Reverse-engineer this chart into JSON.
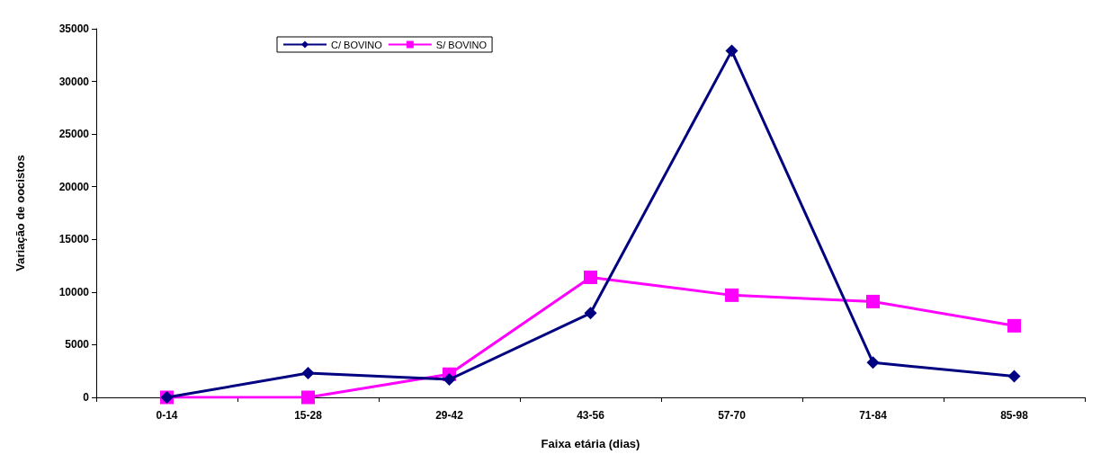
{
  "chart_data": {
    "type": "line",
    "xlabel": "Faixa etária (dias)",
    "ylabel": "Variação de oocistos",
    "categories": [
      "0-14",
      "15-28",
      "29-42",
      "43-56",
      "57-70",
      "71-84",
      "85-98"
    ],
    "series": [
      {
        "name": "C/ BOVINO",
        "color": "#000080",
        "marker": "diamond",
        "values": [
          0,
          2300,
          1700,
          8000,
          32900,
          3300,
          2000
        ]
      },
      {
        "name": "S/ BOVINO",
        "color": "#ff00ff",
        "marker": "square",
        "values": [
          0,
          0,
          2200,
          11400,
          9700,
          9100,
          6800
        ]
      }
    ],
    "ylim": [
      0,
      35000
    ],
    "yticks": [
      0,
      5000,
      10000,
      15000,
      20000,
      25000,
      30000,
      35000
    ],
    "grid": false,
    "legend": "top left",
    "line_style": "solid"
  }
}
